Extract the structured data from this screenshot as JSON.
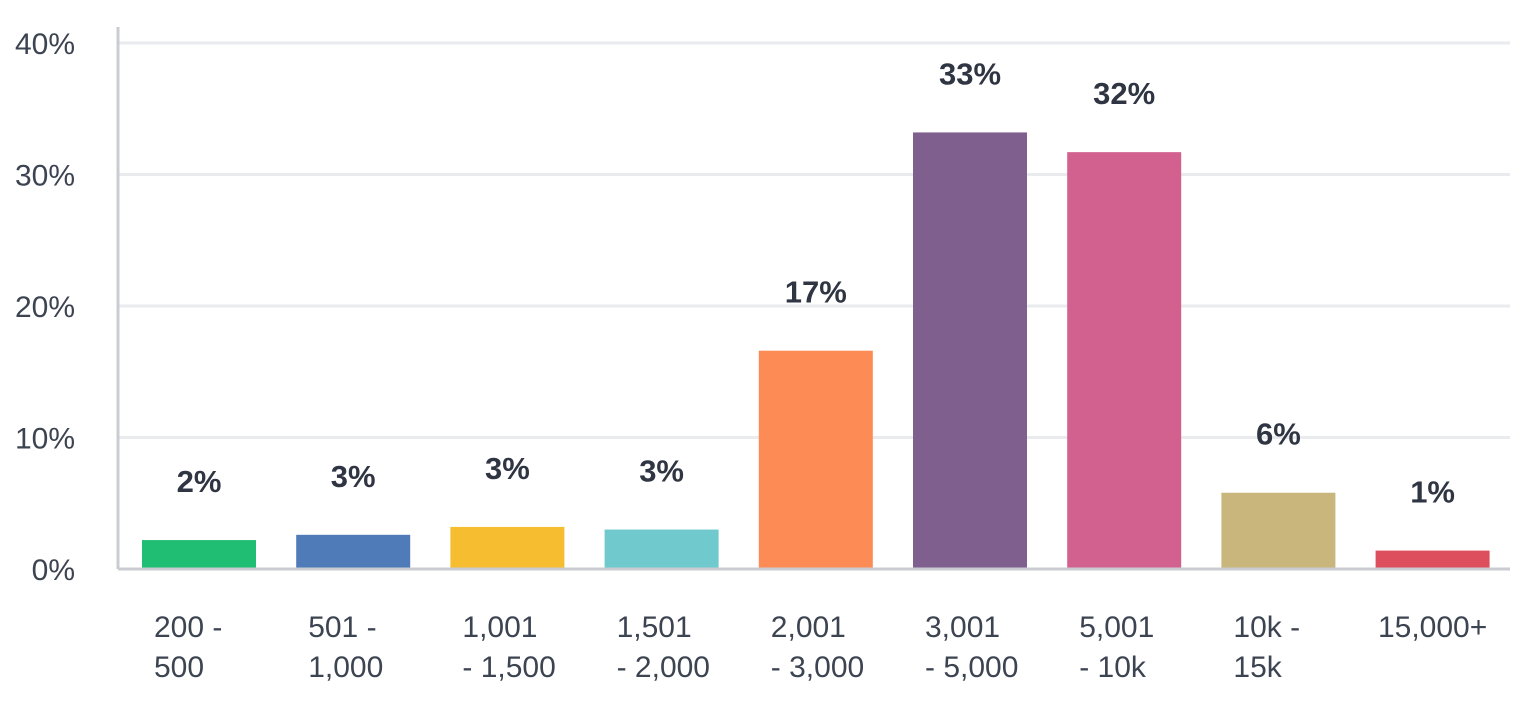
{
  "chart_data": {
    "type": "bar",
    "categories": [
      [
        "200 -",
        "500"
      ],
      [
        "501 -",
        "1,000"
      ],
      [
        "1,001",
        "- 1,500"
      ],
      [
        "1,501",
        "- 2,000"
      ],
      [
        "2,001",
        "- 3,000"
      ],
      [
        "3,001",
        "- 5,000"
      ],
      [
        "5,001",
        "- 10k"
      ],
      [
        "10k -",
        "15k"
      ],
      [
        "15,000+"
      ]
    ],
    "values": [
      2.2,
      2.6,
      3.2,
      3.0,
      16.6,
      33.2,
      31.7,
      5.8,
      1.4
    ],
    "data_labels": [
      "2%",
      "3%",
      "3%",
      "3%",
      "17%",
      "33%",
      "32%",
      "6%",
      "1%"
    ],
    "colors": [
      "#1fbe72",
      "#4f7bb8",
      "#f7bd31",
      "#70c9cd",
      "#fd8b55",
      "#7f5f8e",
      "#d26190",
      "#c8b67d",
      "#dd4f5c"
    ],
    "ylim": [
      0,
      40
    ],
    "yticks": [
      0,
      10,
      20,
      30,
      40
    ],
    "ytick_labels": [
      "0%",
      "10%",
      "20%",
      "30%",
      "40%"
    ],
    "grid": true,
    "title": "",
    "xlabel": "",
    "ylabel": ""
  }
}
